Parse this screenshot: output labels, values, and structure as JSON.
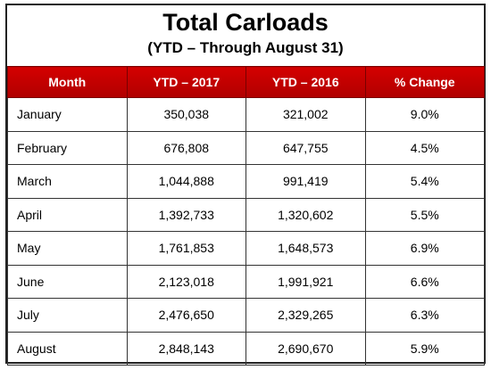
{
  "header": {
    "title": "Total Carloads",
    "subtitle": "(YTD – Through August 31)"
  },
  "table": {
    "columns": [
      "Month",
      "YTD – 2017",
      "YTD – 2016",
      "% Change"
    ],
    "rows": [
      [
        "January",
        "350,038",
        "321,002",
        "9.0%"
      ],
      [
        "February",
        "676,808",
        "647,755",
        "4.5%"
      ],
      [
        "March",
        "1,044,888",
        "991,419",
        "5.4%"
      ],
      [
        "April",
        "1,392,733",
        "1,320,602",
        "5.5%"
      ],
      [
        "May",
        "1,761,853",
        "1,648,573",
        "6.9%"
      ],
      [
        "June",
        "2,123,018",
        "1,991,921",
        "6.6%"
      ],
      [
        "July",
        "2,476,650",
        "2,329,265",
        "6.3%"
      ],
      [
        "August",
        "2,848,143",
        "2,690,670",
        "5.9%"
      ]
    ]
  }
}
